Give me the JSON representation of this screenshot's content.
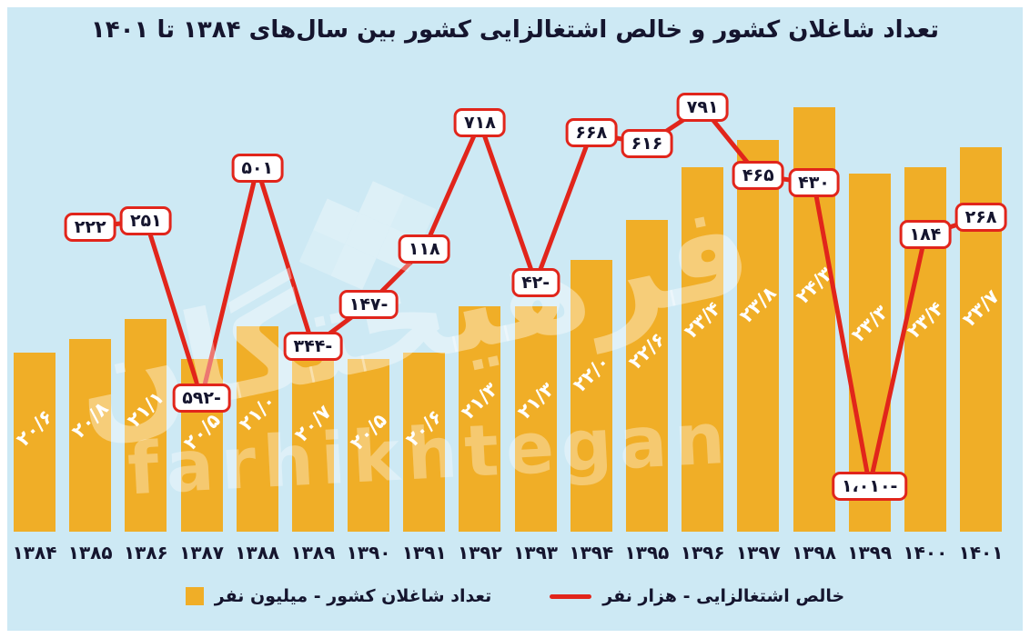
{
  "title": "تعداد شاغلان کشور و خالص اشتغالزایی کشور بین سال‌های ۱۳۸۴ تا ۱۴۰۱",
  "legend": {
    "bars": "تعداد شاغلان کشور - میلیون نفر",
    "line": "خالص اشتغالزایی - هزار نفر"
  },
  "watermark": {
    "fa": "فرهیختگان",
    "en": "farhikhtegan"
  },
  "colors": {
    "background": "#cde9f4",
    "bar": "#f0ae27",
    "line": "#e1251b",
    "text": "#15152e",
    "bar_value_text": "#ffffff",
    "label_box_bg": "#ffffff",
    "label_box_border": "#e1251b"
  },
  "chart_data": {
    "type": "bar+line",
    "title": "تعداد شاغلان کشور و خالص اشتغالزایی کشور بین سال‌های ۱۳۸۴ تا ۱۴۰۱",
    "categories": [
      "۱۳۸۴",
      "۱۳۸۵",
      "۱۳۸۶",
      "۱۳۸۷",
      "۱۳۸۸",
      "۱۳۸۹",
      "۱۳۹۰",
      "۱۳۹۱",
      "۱۳۹۲",
      "۱۳۹۳",
      "۱۳۹۴",
      "۱۳۹۵",
      "۱۳۹۶",
      "۱۳۹۷",
      "۱۳۹۸",
      "۱۳۹۹",
      "۱۴۰۰",
      "۱۴۰۱"
    ],
    "grid": false,
    "legend_position": "bottom",
    "series": [
      {
        "name": "تعداد شاغلان کشور - میلیون نفر",
        "type": "bar",
        "unit": "میلیون نفر",
        "values": [
          20.6,
          20.8,
          21.1,
          20.5,
          21.0,
          20.7,
          20.5,
          20.6,
          21.3,
          21.3,
          22.0,
          22.6,
          23.4,
          23.8,
          24.3,
          23.3,
          23.4,
          23.7
        ],
        "labels": [
          "۲۰/۶",
          "۲۰/۸",
          "۲۱/۱",
          "۲۰/۵",
          "۲۱/۰",
          "۲۰/۷",
          "۲۰/۵",
          "۲۰/۶",
          "۲۱/۳",
          "۲۱/۳",
          "۲۲/۰",
          "۲۲/۶",
          "۲۳/۴",
          "۲۳/۸",
          "۲۴/۳",
          "۲۳/۳",
          "۲۳/۴",
          "۲۳/۷"
        ]
      },
      {
        "name": "خالص اشتغالزایی - هزار نفر",
        "type": "line",
        "unit": "هزار نفر",
        "start_category_index": 1,
        "values": [
          222,
          251,
          -592,
          501,
          -344,
          -147,
          118,
          718,
          -42,
          668,
          616,
          791,
          465,
          430,
          -1010,
          184,
          268
        ],
        "labels": [
          "۲۲۲",
          "۲۵۱",
          "۵۹۲-",
          "۵۰۱",
          "۳۴۴-",
          "۱۴۷-",
          "۱۱۸",
          "۷۱۸",
          "۴۲-",
          "۶۶۸",
          "۶۱۶",
          "۷۹۱",
          "۴۶۵",
          "۴۳۰",
          "۱،۰۱۰-",
          "۱۸۴",
          "۲۶۸"
        ]
      }
    ]
  }
}
